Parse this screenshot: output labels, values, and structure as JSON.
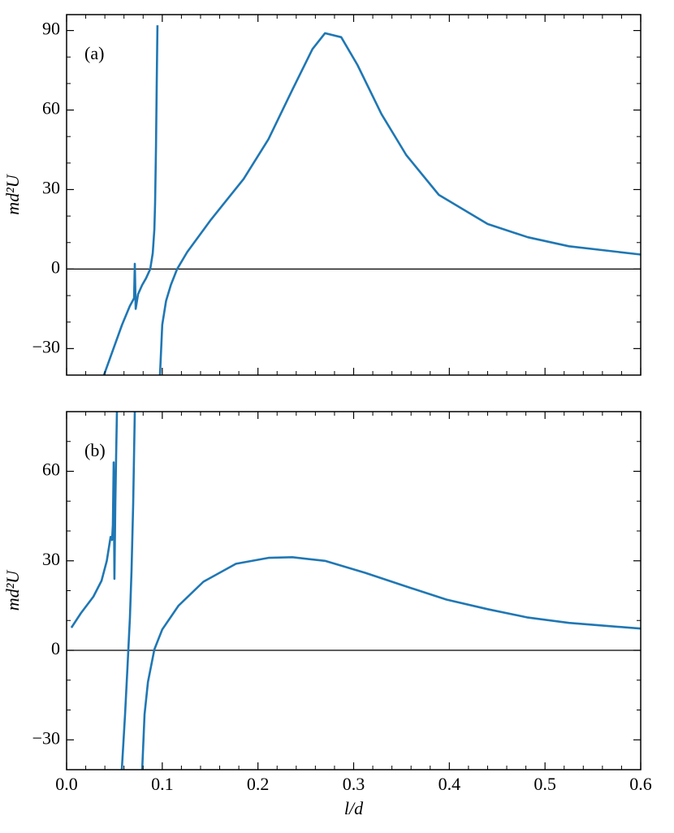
{
  "chart_data": [
    {
      "type": "line",
      "label": "(a)",
      "ylabel": "md²U",
      "xlim": [
        0,
        0.6
      ],
      "ylim": [
        -40,
        96
      ],
      "xticks": [
        0,
        0.1,
        0.2,
        0.3,
        0.4,
        0.5,
        0.6
      ],
      "xminorticks": [
        0.02,
        0.04,
        0.06,
        0.08,
        0.12,
        0.14,
        0.16,
        0.18,
        0.22,
        0.24,
        0.26,
        0.28,
        0.32,
        0.34,
        0.36,
        0.38,
        0.42,
        0.44,
        0.46,
        0.48,
        0.52,
        0.54,
        0.56,
        0.58
      ],
      "yticks": [
        {
          "value": -30,
          "label": "−30"
        },
        0,
        30,
        60,
        90
      ],
      "yminorticks": [
        -20,
        -10,
        10,
        20,
        40,
        50,
        70,
        80
      ],
      "hline": 0,
      "series": [
        {
          "color": "#1f77b4",
          "x": [
            0.039,
            0.049,
            0.058,
            0.066,
            0.0705,
            0.0713,
            0.0722,
            0.0747,
            0.079,
            0.083,
            0.0874,
            0.09,
            0.0917,
            0.0925,
            0.0934,
            0.0942,
            0.095,
            0.096,
            0.0976,
            0.1,
            0.104,
            0.109,
            0.1155,
            0.126,
            0.151,
            0.185,
            0.211,
            0.236,
            0.257,
            0.27,
            0.287,
            0.304,
            0.329,
            0.355,
            0.389,
            0.44,
            0.482,
            0.525,
            0.6
          ],
          "values": [
            -40,
            -30,
            -21,
            -14,
            -11,
            2,
            -15,
            -9.5,
            -6,
            -3.5,
            0,
            6,
            15,
            25,
            46,
            70,
            92,
            null,
            -40,
            -21,
            -12,
            -6,
            0,
            6.4,
            18.7,
            34,
            49,
            67.7,
            83,
            89,
            87.5,
            77,
            58.5,
            43,
            28,
            17,
            12,
            8.6,
            5.5
          ]
        }
      ]
    },
    {
      "type": "line",
      "label": "(b)",
      "ylabel": "md²U",
      "xlabel": "l/d",
      "xlim": [
        0,
        0.6
      ],
      "ylim": [
        -40,
        80
      ],
      "xticks": [
        {
          "value": 0,
          "label": "0.0"
        },
        0.1,
        0.2,
        0.3,
        0.4,
        0.5,
        0.6
      ],
      "xminorticks": [
        0.02,
        0.04,
        0.06,
        0.08,
        0.12,
        0.14,
        0.16,
        0.18,
        0.22,
        0.24,
        0.26,
        0.28,
        0.32,
        0.34,
        0.36,
        0.38,
        0.42,
        0.44,
        0.46,
        0.48,
        0.52,
        0.54,
        0.56,
        0.58
      ],
      "yticks": [
        {
          "value": -30,
          "label": "−30"
        },
        0,
        30,
        60
      ],
      "yminorticks": [
        -20,
        -10,
        10,
        20,
        40,
        50,
        70
      ],
      "hline": 0,
      "series": [
        {
          "color": "#1f77b4",
          "x": [
            0.005,
            0.015,
            0.028,
            0.0365,
            0.042,
            0.046,
            0.0475,
            0.0484,
            0.0492,
            0.05,
            0.0509,
            0.0518,
            0.0526,
            0.054,
            0.0577,
            0.0611,
            0.0637,
            0.0662,
            0.0679,
            0.0696,
            0.0713,
            0.075,
            0.079,
            0.0815,
            0.085,
            0.0917,
            0.1,
            0.117,
            0.143,
            0.177,
            0.211,
            0.236,
            0.27,
            0.312,
            0.355,
            0.397,
            0.44,
            0.482,
            0.525,
            0.6
          ],
          "values": [
            7.6,
            12.5,
            18,
            23.3,
            30,
            38,
            37,
            42,
            63,
            24,
            49,
            65,
            80,
            null,
            -40,
            -21.5,
            -5,
            11,
            27,
            49,
            80,
            null,
            -40,
            -21.5,
            -10.6,
            0.3,
            7,
            15,
            23,
            29,
            31,
            31.2,
            30,
            26,
            21.4,
            17,
            13.8,
            11,
            9.2,
            7.3
          ]
        }
      ]
    }
  ]
}
